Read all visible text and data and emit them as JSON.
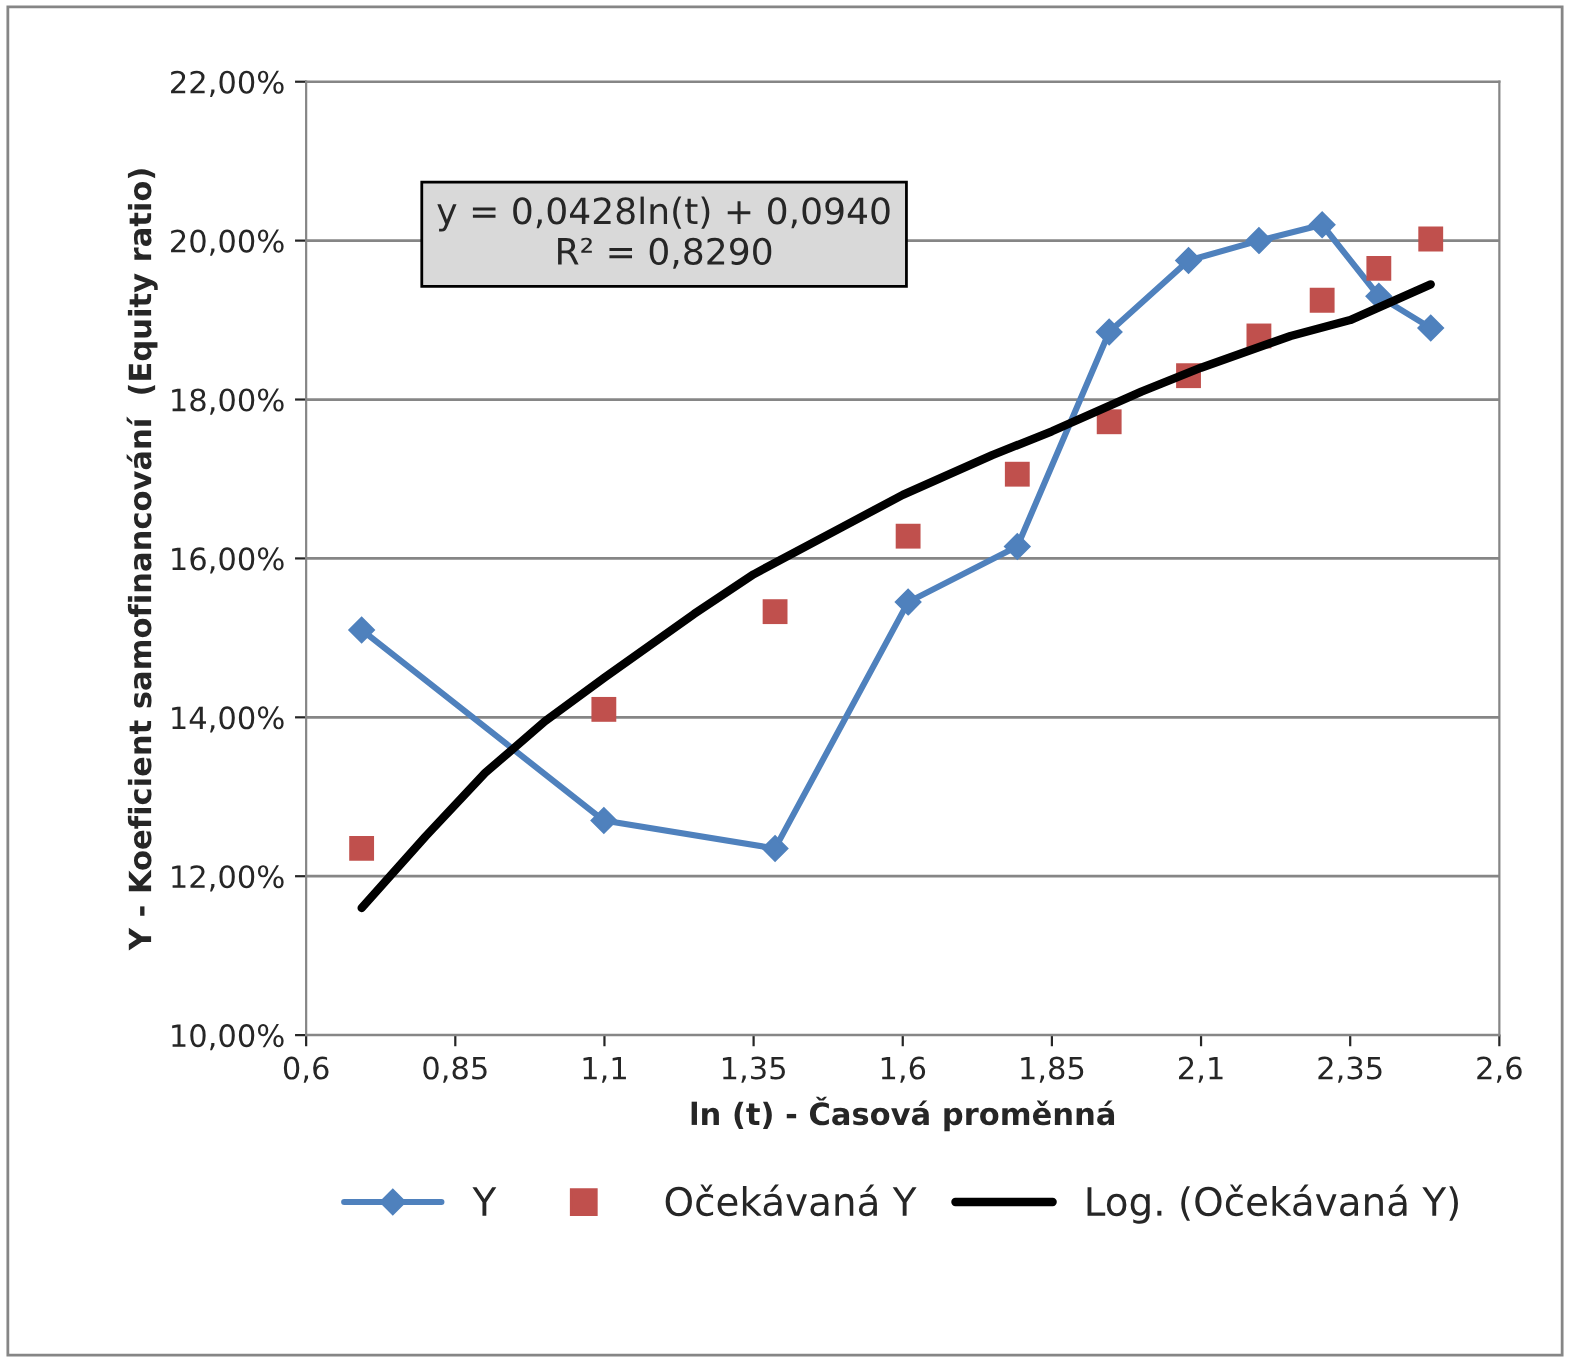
{
  "chart_data": {
    "type": "line",
    "xlabel": "ln (t) - Časová proměnná",
    "ylabel": "Y - Koeficient samofinancování  (Equity ratio)",
    "xlim": [
      0.6,
      2.6
    ],
    "xticks": [
      {
        "value": 0.6,
        "label": "0,6"
      },
      {
        "value": 0.85,
        "label": "0,85"
      },
      {
        "value": 1.1,
        "label": "1,1"
      },
      {
        "value": 1.35,
        "label": "1,35"
      },
      {
        "value": 1.6,
        "label": "1,6"
      },
      {
        "value": 1.85,
        "label": "1,85"
      },
      {
        "value": 2.1,
        "label": "2,1"
      },
      {
        "value": 2.35,
        "label": "2,35"
      },
      {
        "value": 2.6,
        "label": "2,6"
      }
    ],
    "ylim": [
      10,
      22
    ],
    "yticks": [
      {
        "value": 10,
        "label": "10,00%"
      },
      {
        "value": 12,
        "label": "12,00%"
      },
      {
        "value": 14,
        "label": "14,00%"
      },
      {
        "value": 16,
        "label": "16,00%"
      },
      {
        "value": 18,
        "label": "18,00%"
      },
      {
        "value": 20,
        "label": "20,00%"
      },
      {
        "value": 22,
        "label": "22,00%"
      }
    ],
    "grid": "y",
    "legend": "bottom",
    "annotations": [
      "y = 0,0428ln(t) + 0,0940\nR² = 0,8290"
    ],
    "series": [
      {
        "name": "Y",
        "marker": "diamond",
        "color": "#4f81bd",
        "x": [
          0.693,
          1.099,
          1.386,
          1.609,
          1.792,
          1.946,
          2.079,
          2.197,
          2.303,
          2.398,
          2.485
        ],
        "values": [
          15.1,
          12.7,
          12.35,
          15.45,
          16.15,
          18.85,
          19.75,
          20.0,
          20.2,
          19.3,
          18.9
        ]
      },
      {
        "name": "Očekávaná Y",
        "type": "scatter",
        "marker": "square",
        "color": "#c0504d",
        "x": [
          0.693,
          1.099,
          1.386,
          1.609,
          1.792,
          1.946,
          2.079,
          2.197,
          2.303,
          2.398,
          2.485
        ],
        "values": [
          12.35,
          14.1,
          15.33,
          16.28,
          17.06,
          17.72,
          18.3,
          18.8,
          19.25,
          19.65,
          20.02
        ]
      },
      {
        "name": "Log. (Očekávaná Y)",
        "marker": "none",
        "color": "#000000",
        "x": [
          0.693,
          0.8,
          0.9,
          1.0,
          1.1,
          1.25,
          1.35,
          1.5,
          1.6,
          1.75,
          1.85,
          2.0,
          2.1,
          2.25,
          2.35,
          2.485
        ],
        "values": [
          11.6,
          12.5,
          13.3,
          13.95,
          14.5,
          15.3,
          15.8,
          16.4,
          16.8,
          17.3,
          17.6,
          18.1,
          18.4,
          18.8,
          19.0,
          19.45
        ]
      }
    ]
  }
}
